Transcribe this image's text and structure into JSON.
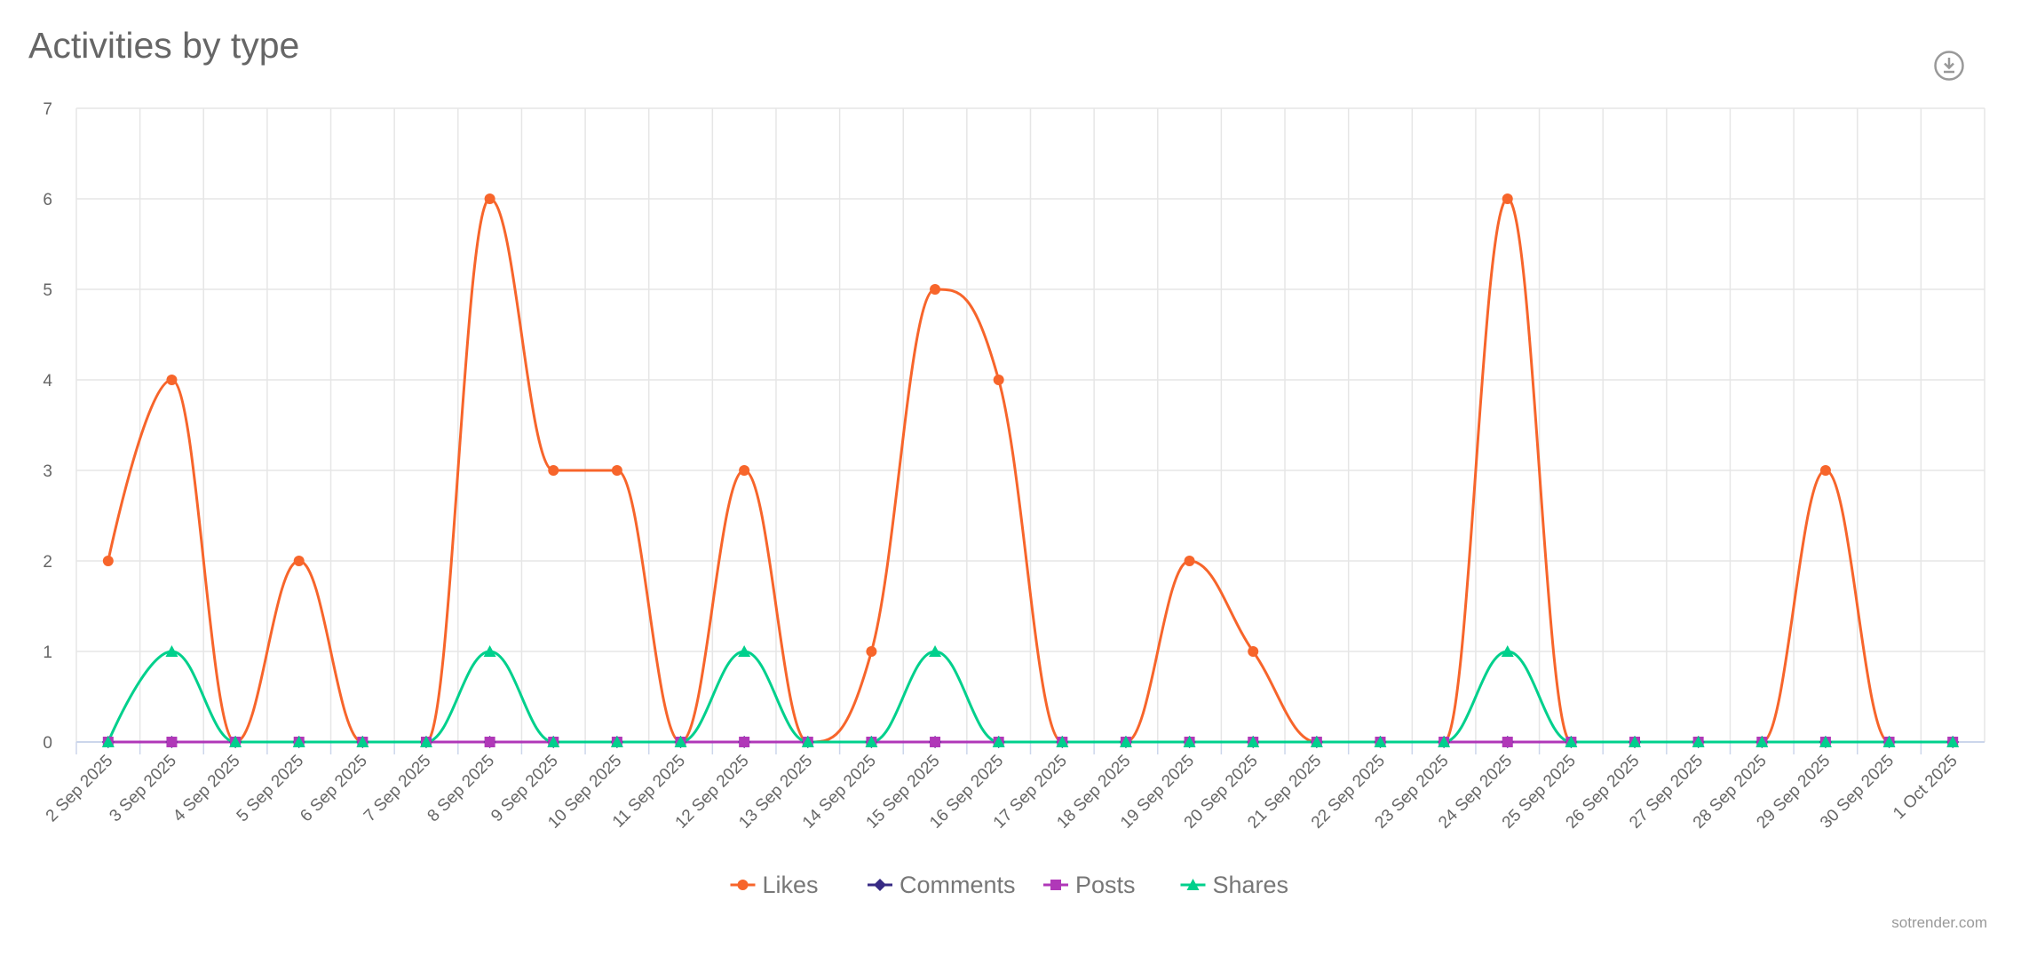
{
  "chart_data": {
    "type": "line",
    "title": "Activities by type",
    "categories": [
      "2 Sep 2025",
      "3 Sep 2025",
      "4 Sep 2025",
      "5 Sep 2025",
      "6 Sep 2025",
      "7 Sep 2025",
      "8 Sep 2025",
      "9 Sep 2025",
      "10 Sep 2025",
      "11 Sep 2025",
      "12 Sep 2025",
      "13 Sep 2025",
      "14 Sep 2025",
      "15 Sep 2025",
      "16 Sep 2025",
      "17 Sep 2025",
      "18 Sep 2025",
      "19 Sep 2025",
      "20 Sep 2025",
      "21 Sep 2025",
      "22 Sep 2025",
      "23 Sep 2025",
      "24 Sep 2025",
      "25 Sep 2025",
      "26 Sep 2025",
      "27 Sep 2025",
      "28 Sep 2025",
      "29 Sep 2025",
      "30 Sep 2025",
      "1 Oct 2025"
    ],
    "series": [
      {
        "name": "Likes",
        "color": "#f7652b",
        "marker": "circle",
        "values": [
          2,
          4,
          0,
          2,
          0,
          0,
          6,
          3,
          3,
          0,
          3,
          0,
          1,
          5,
          4,
          0,
          0,
          2,
          1,
          0,
          0,
          0,
          6,
          0,
          0,
          0,
          0,
          3,
          0,
          0
        ]
      },
      {
        "name": "Comments",
        "color": "#372a84",
        "marker": "diamond",
        "values": [
          0,
          0,
          0,
          0,
          0,
          0,
          0,
          0,
          0,
          0,
          0,
          0,
          0,
          0,
          0,
          0,
          0,
          0,
          0,
          0,
          0,
          0,
          0,
          0,
          0,
          0,
          0,
          0,
          0,
          0
        ]
      },
      {
        "name": "Posts",
        "color": "#b038b8",
        "marker": "square",
        "values": [
          0,
          0,
          0,
          0,
          0,
          0,
          0,
          0,
          0,
          0,
          0,
          0,
          0,
          0,
          0,
          0,
          0,
          0,
          0,
          0,
          0,
          0,
          0,
          0,
          0,
          0,
          0,
          0,
          0,
          0
        ]
      },
      {
        "name": "Shares",
        "color": "#00d08c",
        "marker": "triangle",
        "values": [
          0,
          1,
          0,
          0,
          0,
          0,
          1,
          0,
          0,
          0,
          1,
          0,
          0,
          1,
          0,
          0,
          0,
          0,
          0,
          0,
          0,
          0,
          1,
          0,
          0,
          0,
          0,
          0,
          0,
          0
        ]
      }
    ],
    "yticks": [
      0,
      1,
      2,
      3,
      4,
      5,
      6,
      7
    ],
    "ylim": [
      0,
      7
    ],
    "grid": true,
    "legend": "bottom-center",
    "curve": "spline"
  },
  "header": {
    "title": "Activities by type",
    "download_icon": "download-icon"
  },
  "credits": "sotrender.com"
}
